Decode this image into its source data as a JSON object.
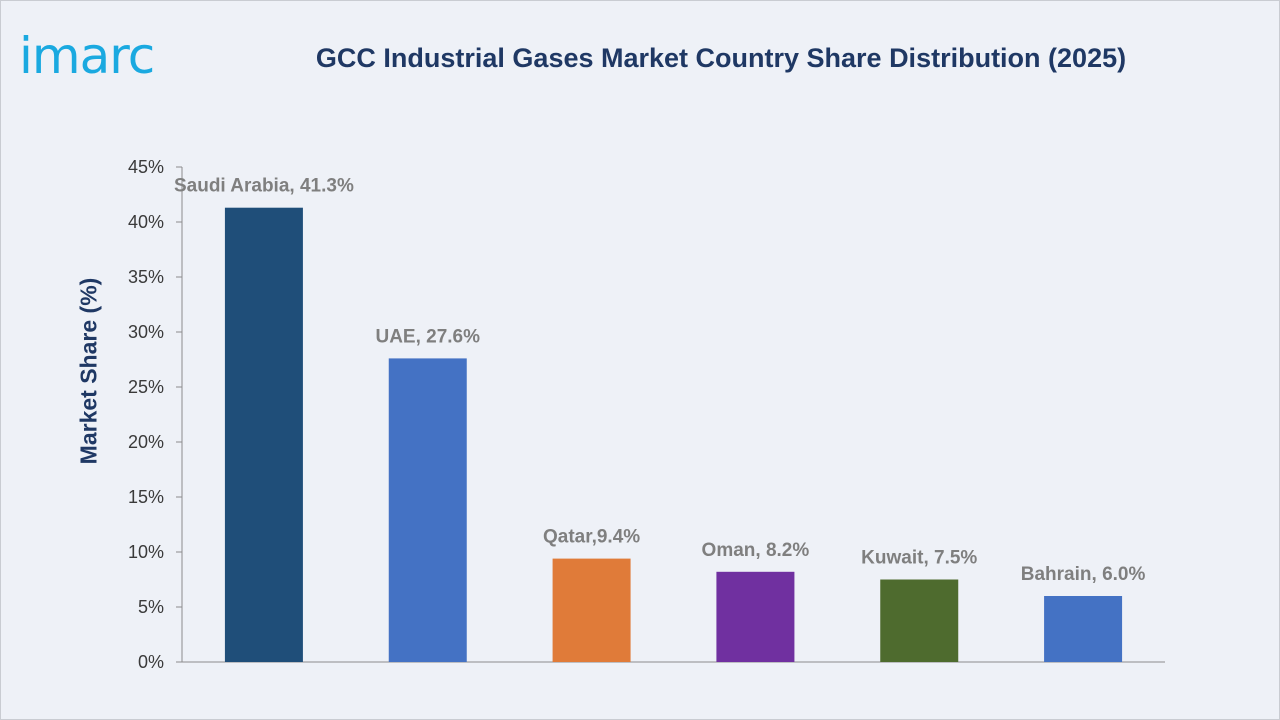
{
  "logo": {
    "text": "imarc"
  },
  "chart_data": {
    "type": "bar",
    "title": "GCC Industrial Gases Market Country Share Distribution (2025)",
    "xlabel": "",
    "ylabel": "Market Share (%)",
    "ylim": [
      0,
      45
    ],
    "yticks": [
      "0%",
      "5%",
      "10%",
      "15%",
      "20%",
      "25%",
      "30%",
      "35%",
      "40%",
      "45%"
    ],
    "categories": [
      "Saudi Arabia",
      "UAE",
      "Qatar",
      "Oman",
      "Kuwait",
      "Bahrain"
    ],
    "values": [
      41.3,
      27.6,
      9.4,
      8.2,
      7.5,
      6.0
    ],
    "data_labels": [
      "Saudi Arabia, 41.3%",
      "UAE, 27.6%",
      "Qatar,9.4%",
      "Oman, 8.2%",
      "Kuwait, 7.5%",
      "Bahrain, 6.0%"
    ],
    "colors": [
      "#1f4e79",
      "#4472c4",
      "#e07b39",
      "#7030a0",
      "#4e6b2e",
      "#4472c4"
    ],
    "grid": false,
    "legend": "none"
  }
}
